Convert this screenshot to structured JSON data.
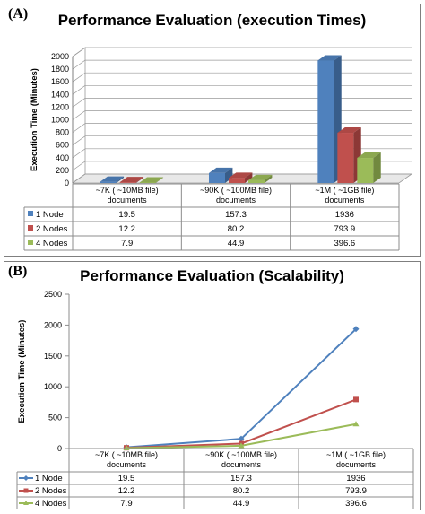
{
  "chart_data": [
    {
      "panel_label": "(A)",
      "type": "bar",
      "title": "Performance Evaluation (execution Times)",
      "ylabel": "Execution Time (Minutes)",
      "xlabel": "",
      "categories": [
        [
          "~7K ( ~10MB file)",
          "documents"
        ],
        [
          "~90K ( ~100MB file)",
          "documents"
        ],
        [
          "~1M ( ~1GB file)",
          "documents"
        ]
      ],
      "yticks": [
        0,
        200,
        400,
        600,
        800,
        1000,
        1200,
        1400,
        1600,
        1800,
        2000
      ],
      "ylim": [
        0,
        2000
      ],
      "series": [
        {
          "name": "1 Node",
          "values": [
            "19.5",
            "157.3",
            "1936"
          ],
          "color": "#4f81bd",
          "dark": "#385d8a"
        },
        {
          "name": "2 Nodes",
          "values": [
            "12.2",
            "80.2",
            "793.9"
          ],
          "color": "#c0504d",
          "dark": "#8c3836"
        },
        {
          "name": "4 Nodes",
          "values": [
            "7.9",
            "44.9",
            "396.6"
          ],
          "color": "#9bbb59",
          "dark": "#71893f"
        }
      ],
      "grid": true,
      "legend": "data table below chart"
    },
    {
      "panel_label": "(B)",
      "type": "line",
      "title": "Performance Evaluation (Scalability)",
      "ylabel": "Execution Time (Minutes)",
      "xlabel": "",
      "categories": [
        [
          "~7K ( ~10MB file)",
          "documents"
        ],
        [
          "~90K ( ~100MB file)",
          "documents"
        ],
        [
          "~1M ( ~1GB file)",
          "documents"
        ]
      ],
      "yticks": [
        0,
        500,
        1000,
        1500,
        2000,
        2500
      ],
      "ylim": [
        0,
        2500
      ],
      "series": [
        {
          "name": "1 Node",
          "values": [
            "19.5",
            "157.3",
            "1936"
          ],
          "color": "#4f81bd",
          "marker": "diamond"
        },
        {
          "name": "2 Nodes",
          "values": [
            "12.2",
            "80.2",
            "793.9"
          ],
          "color": "#c0504d",
          "marker": "square"
        },
        {
          "name": "4 Nodes",
          "values": [
            "7.9",
            "44.9",
            "396.6"
          ],
          "color": "#9bbb59",
          "marker": "triangle"
        }
      ],
      "grid": false,
      "legend": "data table below chart"
    }
  ]
}
